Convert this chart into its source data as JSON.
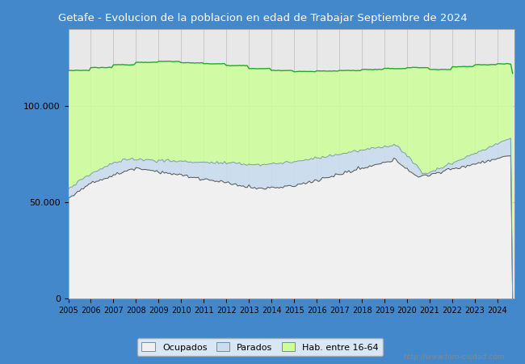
{
  "title": "Getafe - Evolucion de la poblacion en edad de Trabajar Septiembre de 2024",
  "title_bg_color": "#4488CC",
  "title_text_color": "white",
  "title_fontsize": 9.5,
  "ocupados_fill_color": "#E8E8E8",
  "parados_fill_color": "#C8DDEF",
  "hab_fill_color": "#CCFF99",
  "line_ocupados_color": "#555555",
  "line_parados_color": "#7799BB",
  "line_hab_color": "#22AA22",
  "plot_bg_color": "#E8E8E8",
  "grid_color": "#BBBBBB",
  "watermark": "http://www.foro-ciudad.com",
  "outer_border_color": "#4488CC",
  "ylim_max": 140000,
  "ytick_values": [
    0,
    50000,
    100000
  ],
  "ytick_labels": [
    "0",
    "50.000",
    "100.000"
  ]
}
